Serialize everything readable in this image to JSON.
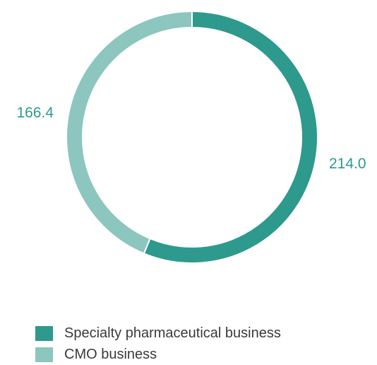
{
  "chart_data": {
    "type": "pie",
    "donut": true,
    "title": "",
    "series": [
      {
        "name": "Specialty pharmaceutical business",
        "value": 214.0,
        "label": "214.0",
        "color": "#2e998d"
      },
      {
        "name": "CMO business",
        "value": 166.4,
        "label": "166.4",
        "color": "#8cc6be"
      }
    ],
    "label_color": "#2e998d",
    "legend_position": "bottom"
  }
}
